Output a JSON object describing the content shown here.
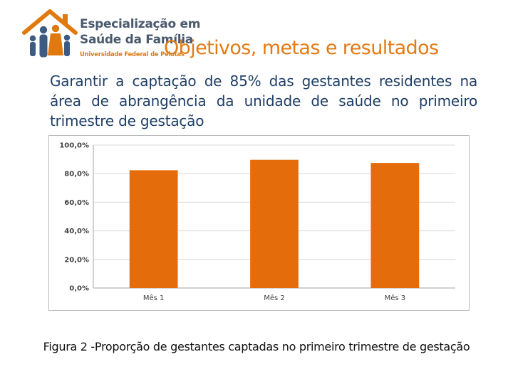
{
  "logo": {
    "line1": "Especialização em",
    "line2": "Saúde da Família",
    "sub": "Universidade Federal de Pelotas",
    "icon": "family-house-icon"
  },
  "slide": {
    "title": "Objetivos, metas e resultados",
    "subtitle": "Garantir a captação de 85% das gestantes residentes na área de abrangência da unidade de saúde no primeiro trimestre de gestação",
    "caption": "Figura 2 -Proporção de gestantes captadas no primeiro trimestre de gestação"
  },
  "colors": {
    "title": "#e47a13",
    "subtitle": "#1f3e66",
    "bar": "#e46c0a",
    "grid": "#d9d9d9"
  },
  "chart_data": {
    "type": "bar",
    "categories": [
      "Mês 1",
      "Mês 2",
      "Mês 3"
    ],
    "values": [
      82.4,
      89.7,
      87.5
    ],
    "ylim": [
      0,
      100
    ],
    "yticks": [
      0,
      20,
      40,
      60,
      80,
      100
    ],
    "ytick_labels": [
      "0,0%",
      "20,0%",
      "40,0%",
      "60,0%",
      "80,0%",
      "100,0%"
    ],
    "grid": true,
    "legend": "none"
  }
}
